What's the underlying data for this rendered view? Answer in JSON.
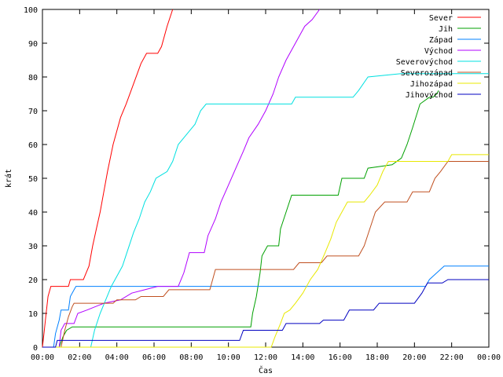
{
  "chart_data": {
    "type": "line",
    "title": "",
    "xlabel": "Čas",
    "ylabel": "krát",
    "ylim": [
      0,
      100
    ],
    "xlim": [
      0,
      24
    ],
    "legend_position": "top-right",
    "grid": false,
    "x_ticks": [
      {
        "value": 0,
        "label": "00:00"
      },
      {
        "value": 2,
        "label": "02:00"
      },
      {
        "value": 4,
        "label": "04:00"
      },
      {
        "value": 6,
        "label": "06:00"
      },
      {
        "value": 8,
        "label": "08:00"
      },
      {
        "value": 10,
        "label": "10:00"
      },
      {
        "value": 12,
        "label": "12:00"
      },
      {
        "value": 14,
        "label": "14:00"
      },
      {
        "value": 16,
        "label": "16:00"
      },
      {
        "value": 18,
        "label": "18:00"
      },
      {
        "value": 20,
        "label": "20:00"
      },
      {
        "value": 22,
        "label": "22:00"
      },
      {
        "value": 24,
        "label": "00:00"
      }
    ],
    "y_ticks": [
      0,
      10,
      20,
      30,
      40,
      50,
      60,
      70,
      80,
      90,
      100
    ],
    "series": [
      {
        "name": "Sever",
        "color": "#ff0000",
        "points": [
          [
            0,
            0
          ],
          [
            0.1,
            5
          ],
          [
            0.2,
            10
          ],
          [
            0.3,
            15
          ],
          [
            0.45,
            18
          ],
          [
            1.4,
            18
          ],
          [
            1.5,
            20
          ],
          [
            2.2,
            20
          ],
          [
            2.35,
            22
          ],
          [
            2.5,
            24
          ],
          [
            2.7,
            30
          ],
          [
            2.9,
            35
          ],
          [
            3.1,
            40
          ],
          [
            3.3,
            46
          ],
          [
            3.5,
            52
          ],
          [
            3.8,
            60
          ],
          [
            4.2,
            68
          ],
          [
            4.5,
            72
          ],
          [
            4.9,
            78
          ],
          [
            5.3,
            84
          ],
          [
            5.6,
            87
          ],
          [
            6.2,
            87
          ],
          [
            6.4,
            89
          ],
          [
            6.7,
            95
          ],
          [
            7.0,
            100
          ]
        ]
      },
      {
        "name": "Jih",
        "color": "#00a000",
        "points": [
          [
            0,
            0
          ],
          [
            0.9,
            0
          ],
          [
            1.1,
            3
          ],
          [
            1.3,
            5
          ],
          [
            1.6,
            6
          ],
          [
            11.2,
            6
          ],
          [
            11.3,
            10
          ],
          [
            11.5,
            15
          ],
          [
            11.7,
            22
          ],
          [
            11.8,
            27
          ],
          [
            12.1,
            30
          ],
          [
            12.7,
            30
          ],
          [
            12.8,
            35
          ],
          [
            13.1,
            40
          ],
          [
            13.4,
            45
          ],
          [
            15.9,
            45
          ],
          [
            16.1,
            50
          ],
          [
            17.3,
            50
          ],
          [
            17.5,
            53
          ],
          [
            18.8,
            54
          ],
          [
            19.3,
            56
          ],
          [
            19.6,
            60
          ],
          [
            19.9,
            65
          ],
          [
            20.3,
            72
          ],
          [
            20.8,
            74
          ],
          [
            21.0,
            74
          ],
          [
            21.2,
            75
          ],
          [
            21.3,
            76
          ]
        ]
      },
      {
        "name": "Západ",
        "color": "#0080ff",
        "points": [
          [
            0,
            0
          ],
          [
            0.6,
            0
          ],
          [
            0.7,
            4
          ],
          [
            0.9,
            8
          ],
          [
            1.0,
            11
          ],
          [
            1.4,
            11
          ],
          [
            1.5,
            15
          ],
          [
            1.8,
            18
          ],
          [
            20.6,
            18
          ],
          [
            20.8,
            20
          ],
          [
            21.2,
            22
          ],
          [
            21.6,
            24
          ],
          [
            24,
            24
          ]
        ]
      },
      {
        "name": "Východ",
        "color": "#b000ff",
        "points": [
          [
            0,
            0
          ],
          [
            0.9,
            0
          ],
          [
            1.0,
            5
          ],
          [
            1.2,
            7
          ],
          [
            1.7,
            7
          ],
          [
            1.9,
            10
          ],
          [
            2.4,
            11
          ],
          [
            3.3,
            13
          ],
          [
            4.2,
            14
          ],
          [
            4.8,
            16
          ],
          [
            5.5,
            17
          ],
          [
            6.2,
            18
          ],
          [
            7.3,
            18
          ],
          [
            7.6,
            22
          ],
          [
            7.9,
            28
          ],
          [
            8.7,
            28
          ],
          [
            8.9,
            33
          ],
          [
            9.3,
            38
          ],
          [
            9.6,
            43
          ],
          [
            10.0,
            48
          ],
          [
            10.4,
            53
          ],
          [
            10.8,
            58
          ],
          [
            11.1,
            62
          ],
          [
            11.6,
            66
          ],
          [
            12.0,
            70
          ],
          [
            12.4,
            75
          ],
          [
            12.7,
            80
          ],
          [
            13.1,
            85
          ],
          [
            13.4,
            88
          ],
          [
            13.8,
            92
          ],
          [
            14.1,
            95
          ],
          [
            14.5,
            97
          ],
          [
            14.9,
            100
          ]
        ]
      },
      {
        "name": "Severovýchod",
        "color": "#00e0e0",
        "points": [
          [
            0,
            0
          ],
          [
            2.6,
            0
          ],
          [
            2.8,
            5
          ],
          [
            3.1,
            10
          ],
          [
            3.4,
            14
          ],
          [
            3.7,
            18
          ],
          [
            4.0,
            21
          ],
          [
            4.3,
            24
          ],
          [
            4.6,
            29
          ],
          [
            4.9,
            34
          ],
          [
            5.2,
            38
          ],
          [
            5.5,
            43
          ],
          [
            5.8,
            46
          ],
          [
            6.1,
            50
          ],
          [
            6.4,
            51
          ],
          [
            6.7,
            52
          ],
          [
            7.0,
            55
          ],
          [
            7.3,
            60
          ],
          [
            7.6,
            62
          ],
          [
            7.9,
            64
          ],
          [
            8.2,
            66
          ],
          [
            8.5,
            70
          ],
          [
            8.8,
            72
          ],
          [
            13.4,
            72
          ],
          [
            13.6,
            74
          ],
          [
            16.7,
            74
          ],
          [
            17.0,
            76
          ],
          [
            17.5,
            80
          ],
          [
            19.3,
            81
          ],
          [
            24,
            81
          ]
        ]
      },
      {
        "name": "Severozápad",
        "color": "#c05020",
        "points": [
          [
            0,
            0
          ],
          [
            1.0,
            0
          ],
          [
            1.2,
            5
          ],
          [
            1.4,
            9
          ],
          [
            1.6,
            12
          ],
          [
            1.7,
            13
          ],
          [
            3.8,
            13
          ],
          [
            4.0,
            14
          ],
          [
            5.0,
            14
          ],
          [
            5.3,
            15
          ],
          [
            6.5,
            15
          ],
          [
            6.8,
            17
          ],
          [
            9.0,
            17
          ],
          [
            9.3,
            23
          ],
          [
            13.5,
            23
          ],
          [
            13.8,
            25
          ],
          [
            15.0,
            25
          ],
          [
            15.3,
            27
          ],
          [
            17.0,
            27
          ],
          [
            17.3,
            30
          ],
          [
            17.6,
            35
          ],
          [
            17.9,
            40
          ],
          [
            18.4,
            43
          ],
          [
            19.6,
            43
          ],
          [
            19.9,
            46
          ],
          [
            20.8,
            46
          ],
          [
            21.1,
            50
          ],
          [
            21.4,
            52
          ],
          [
            21.8,
            55
          ],
          [
            24,
            55
          ]
        ]
      },
      {
        "name": "Jihozápad",
        "color": "#e8e800",
        "points": [
          [
            0,
            0
          ],
          [
            12.3,
            0
          ],
          [
            12.5,
            3
          ],
          [
            12.8,
            7
          ],
          [
            13.0,
            10
          ],
          [
            13.3,
            11
          ],
          [
            13.6,
            13
          ],
          [
            14.0,
            16
          ],
          [
            14.4,
            20
          ],
          [
            14.8,
            23
          ],
          [
            15.2,
            28
          ],
          [
            15.5,
            32
          ],
          [
            15.8,
            37
          ],
          [
            16.1,
            40
          ],
          [
            16.4,
            43
          ],
          [
            17.3,
            43
          ],
          [
            17.6,
            45
          ],
          [
            18.0,
            48
          ],
          [
            18.3,
            52
          ],
          [
            18.6,
            55
          ],
          [
            21.8,
            55
          ],
          [
            22.0,
            57
          ],
          [
            24,
            57
          ]
        ]
      },
      {
        "name": "Jihovýchod",
        "color": "#0000c0",
        "points": [
          [
            0,
            0
          ],
          [
            0.7,
            0
          ],
          [
            0.8,
            2
          ],
          [
            10.6,
            2
          ],
          [
            10.8,
            5
          ],
          [
            12.9,
            5
          ],
          [
            13.1,
            7
          ],
          [
            14.9,
            7
          ],
          [
            15.1,
            8
          ],
          [
            16.2,
            8
          ],
          [
            16.5,
            11
          ],
          [
            17.8,
            11
          ],
          [
            18.1,
            13
          ],
          [
            20.0,
            13
          ],
          [
            20.4,
            16
          ],
          [
            20.7,
            19
          ],
          [
            21.5,
            19
          ],
          [
            21.8,
            20
          ],
          [
            24,
            20
          ]
        ]
      }
    ]
  }
}
